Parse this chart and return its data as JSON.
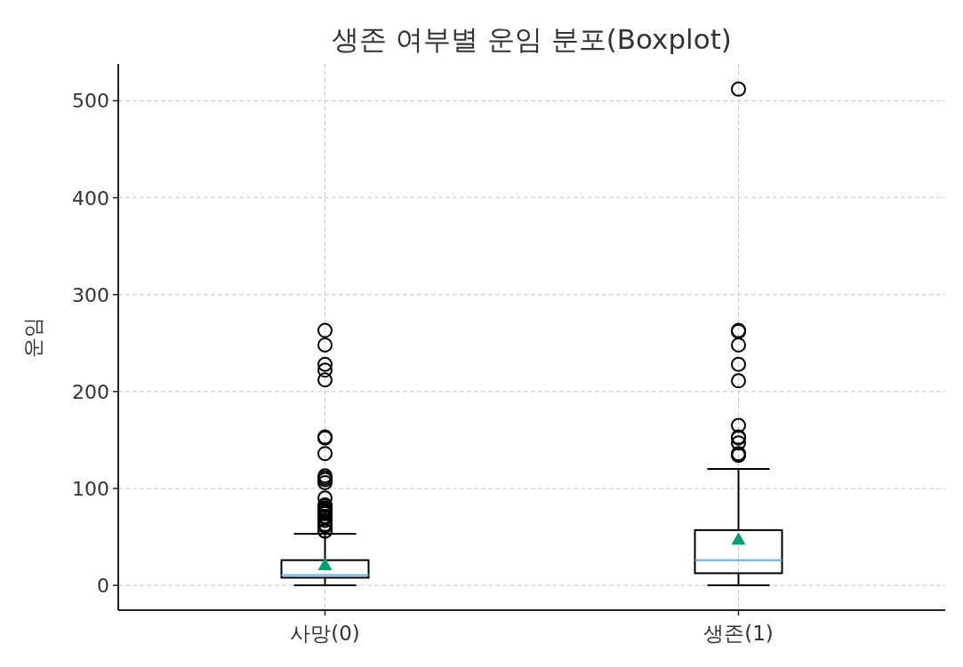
{
  "chart_data": {
    "type": "box",
    "title": "생존 여부별 운임 분포(Boxplot)",
    "ylabel": "운임",
    "categories": [
      "사망(0)",
      "생존(1)"
    ],
    "boxes": [
      {
        "low": 0,
        "q1": 7.9,
        "median": 10.5,
        "q3": 26,
        "high": 53.1,
        "mean": 22.1,
        "outliers": [
          56,
          56,
          61,
          62,
          63,
          67,
          70,
          71,
          71,
          74,
          75,
          76,
          77,
          78,
          79,
          80,
          82,
          83,
          90,
          106,
          109,
          111,
          113,
          136,
          152,
          153,
          212,
          222,
          228,
          248,
          263
        ]
      },
      {
        "low": 0,
        "q1": 12.5,
        "median": 26,
        "q3": 57,
        "high": 120,
        "mean": 48.4,
        "outliers": [
          134,
          135,
          136,
          147,
          152,
          153,
          165,
          211,
          228,
          248,
          262,
          263,
          512
        ]
      }
    ],
    "ylim": [
      -25.6,
      538
    ],
    "yticks": [
      0,
      100,
      200,
      300,
      400,
      500
    ],
    "grid": true
  }
}
